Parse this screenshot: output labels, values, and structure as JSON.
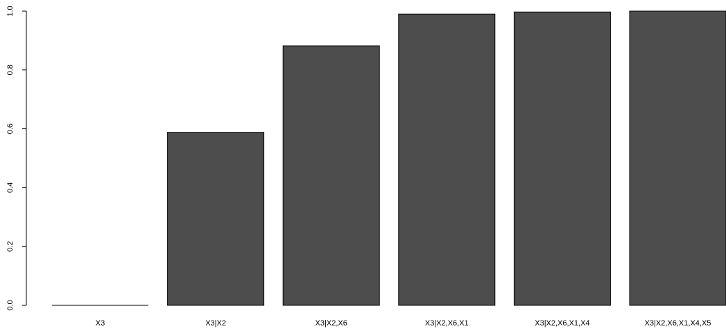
{
  "chart_data": {
    "type": "bar",
    "categories": [
      "X3",
      "X3|X2",
      "X3|X2,X6",
      "X3|X2,X6,X1",
      "X3|X2,X6,X1,X4",
      "X3|X2,X6,X1,X4,X5"
    ],
    "values": [
      0.0,
      0.588,
      0.882,
      0.99,
      0.997,
      1.0
    ],
    "title": "",
    "xlabel": "",
    "ylabel": "",
    "ylim": [
      0,
      1
    ],
    "yticks": [
      "0.0",
      "0.2",
      "0.4",
      "0.6",
      "0.8",
      "1.0"
    ],
    "bar_color": "#4d4d4d",
    "grid": false
  }
}
